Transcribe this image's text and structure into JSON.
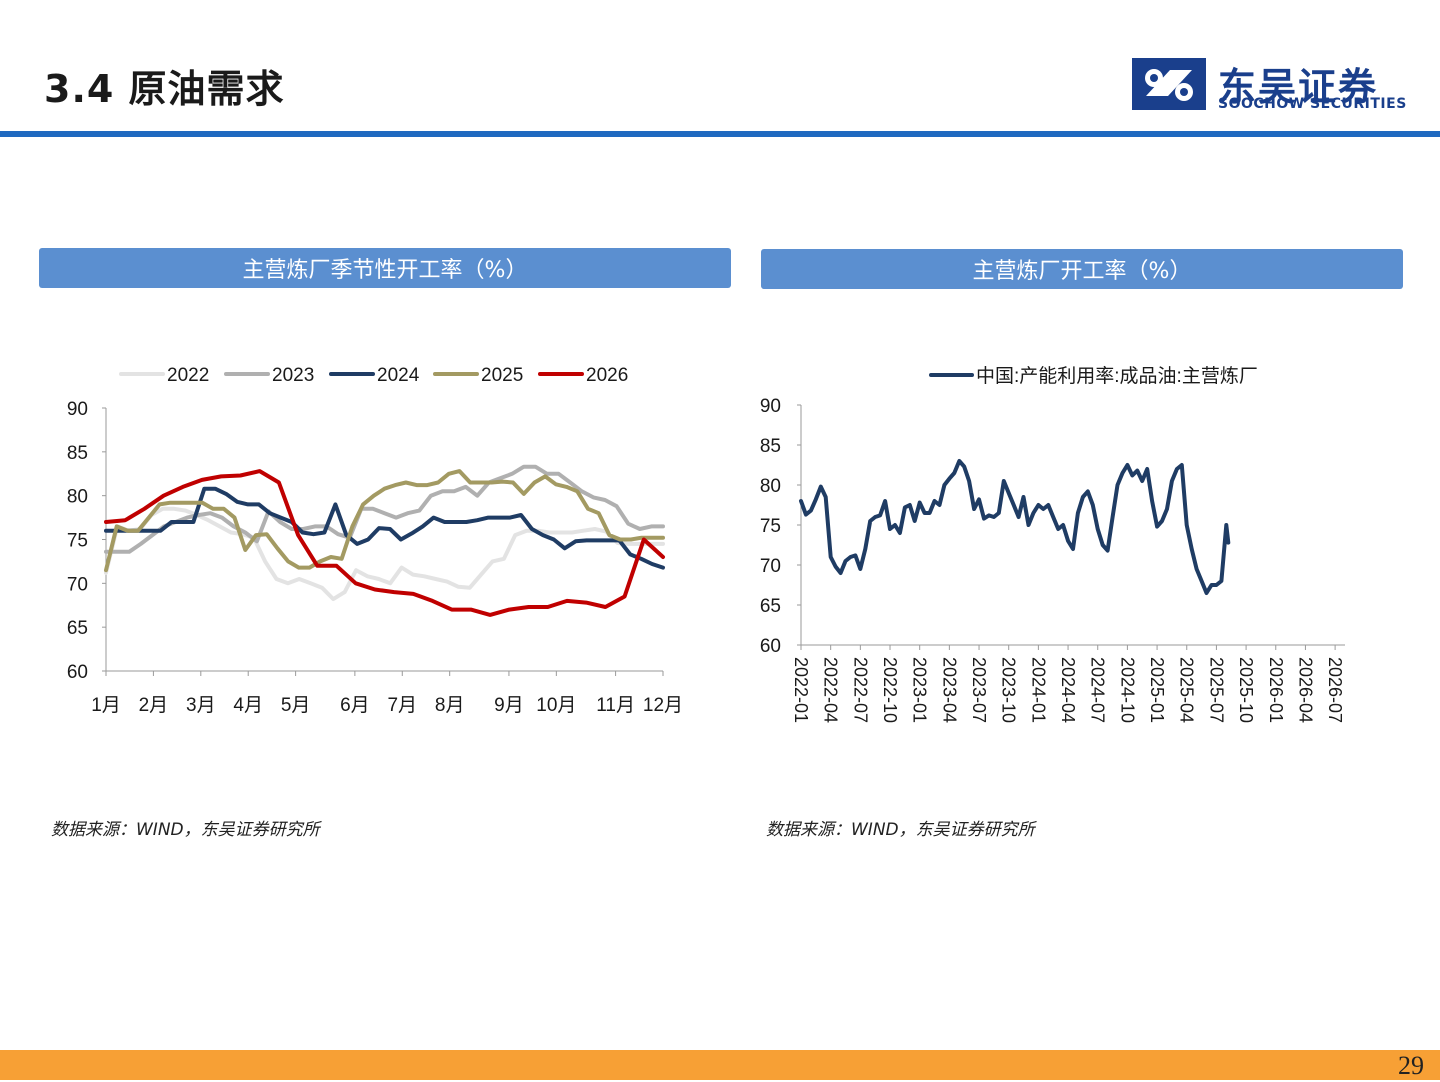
{
  "header": {
    "title": "3.4 原油需求"
  },
  "logo": {
    "name_cn": "东吴证券",
    "name_en": "SOOCHOW SECURITIES",
    "icon": "soochow-logo-icon"
  },
  "colors": {
    "accent": "#1f69c0",
    "panel": "#5b8fd0",
    "footer": "#f7a035",
    "logo": "#1a3f8c"
  },
  "left_panel": {
    "title": "主营炼厂季节性开工率（%）",
    "source": "数据来源：WIND，东吴证券研究所"
  },
  "right_panel": {
    "title": "主营炼厂开工率（%）",
    "source": "数据来源：WIND，东吴证券研究所"
  },
  "page_number": "29",
  "chart_data": [
    {
      "type": "line",
      "title": "主营炼厂季节性开工率（%）",
      "x_labels": [
        "1月",
        "2月",
        "3月",
        "4月",
        "5月",
        "6月",
        "7月",
        "8月",
        "9月",
        "10月",
        "11月",
        "12月"
      ],
      "x_tick_weeks": [
        1,
        5,
        9,
        13,
        17,
        22,
        26,
        30,
        35,
        39,
        44,
        48
      ],
      "x_range": [
        1,
        48
      ],
      "ylim": [
        60,
        90
      ],
      "yticks": [
        60,
        65,
        70,
        75,
        80,
        85,
        90
      ],
      "legend_position": "top",
      "series": [
        {
          "name": "2022",
          "color": "#e3e3e3",
          "values": [
            71.2,
            76.5,
            76.0,
            76.2,
            77.8,
            78.5,
            78.5,
            78.3,
            77.8,
            77.2,
            76.5,
            75.8,
            75.6,
            75.2,
            72.5,
            70.5,
            70.0,
            70.5,
            70.0,
            69.5,
            68.2,
            69.0,
            71.5,
            70.8,
            70.5,
            70.0,
            71.8,
            71.0,
            70.8,
            70.5,
            70.2,
            69.6,
            69.5,
            71.0,
            72.5,
            72.8,
            75.5,
            76.0,
            76.0,
            75.8,
            75.8,
            75.8,
            76.0,
            76.2,
            75.9,
            74.6,
            74.5,
            74.5,
            74.5,
            74.5
          ]
        },
        {
          "name": "2023",
          "color": "#b0b0b0",
          "values": [
            73.6,
            73.6,
            73.6,
            74.5,
            75.5,
            76.5,
            77.0,
            77.5,
            77.8,
            78.0,
            77.5,
            76.5,
            75.8,
            74.8,
            78.2,
            77.0,
            76.2,
            76.2,
            76.5,
            76.5,
            75.6,
            75.2,
            78.5,
            78.5,
            78.0,
            77.5,
            78.0,
            78.3,
            80.0,
            80.5,
            80.5,
            81.0,
            80.0,
            81.5,
            82.0,
            82.5,
            83.3,
            83.3,
            82.5,
            82.5,
            81.5,
            80.5,
            79.8,
            79.5,
            78.8,
            76.8,
            76.2,
            76.5,
            76.5
          ]
        },
        {
          "name": "2024",
          "color": "#1f3c64",
          "values": [
            76.0,
            76.0,
            76.0,
            76.0,
            76.0,
            76.0,
            77.0,
            77.0,
            77.0,
            80.8,
            80.8,
            80.2,
            79.3,
            79.0,
            79.0,
            78.0,
            77.5,
            77.0,
            75.8,
            75.6,
            75.8,
            79.0,
            75.5,
            74.5,
            75.0,
            76.3,
            76.2,
            75.0,
            75.7,
            76.5,
            77.5,
            77.0,
            77.0,
            77.0,
            77.2,
            77.5,
            77.5,
            77.5,
            77.8,
            76.2,
            75.5,
            75.0,
            74.0,
            74.8,
            74.9,
            74.9,
            74.9,
            74.9,
            73.3,
            72.8,
            72.2,
            71.8
          ]
        },
        {
          "name": "2025",
          "color": "#a39a62",
          "values": [
            71.5,
            76.5,
            76.0,
            76.0,
            77.5,
            79.0,
            79.2,
            79.2,
            79.2,
            79.2,
            78.5,
            78.5,
            77.5,
            73.8,
            75.5,
            75.6,
            74.0,
            72.5,
            71.8,
            71.8,
            72.5,
            73.0,
            72.8,
            76.5,
            79.0,
            80.0,
            80.8,
            81.2,
            81.5,
            81.2,
            81.2,
            81.5,
            82.5,
            82.8,
            81.5,
            81.5,
            81.5,
            81.6,
            81.5,
            80.2,
            81.5,
            82.2,
            81.3,
            81.0,
            80.5,
            78.5,
            78.0,
            75.5,
            75.0,
            75.0,
            75.2,
            75.2,
            75.2
          ]
        },
        {
          "name": "2026",
          "color": "#c00000",
          "values": [
            77.0,
            77.2,
            78.5,
            80.0,
            81.0,
            81.8,
            82.2,
            82.3,
            82.8,
            81.5,
            75.5,
            72.0,
            72.0,
            70.0,
            69.3,
            69.0,
            68.8,
            68.0,
            67.0,
            67.0,
            66.4,
            67.0,
            67.3,
            67.3,
            68.0,
            67.8,
            67.3,
            68.5,
            75.0,
            73.0
          ]
        }
      ]
    },
    {
      "type": "line",
      "title": "主营炼厂开工率（%）",
      "x_labels": [
        "2022-01",
        "2022-04",
        "2022-07",
        "2022-10",
        "2023-01",
        "2023-04",
        "2023-07",
        "2023-10",
        "2024-01",
        "2024-04",
        "2024-07",
        "2024-10",
        "2025-01",
        "2025-04",
        "2025-07",
        "2025-10",
        "2026-01",
        "2026-04",
        "2026-07"
      ],
      "x_range": [
        0,
        55
      ],
      "ylim": [
        60,
        90
      ],
      "yticks": [
        60,
        65,
        70,
        75,
        80,
        85,
        90
      ],
      "legend_position": "top",
      "series": [
        {
          "name": "中国:产能利用率:成品油:主营炼厂",
          "color": "#1f3c64",
          "points": [
            [
              0,
              78.0
            ],
            [
              0.5,
              76.3
            ],
            [
              1,
              76.8
            ],
            [
              1.5,
              78.2
            ],
            [
              2,
              79.8
            ],
            [
              2.5,
              78.5
            ],
            [
              3,
              71.0
            ],
            [
              3.5,
              69.8
            ],
            [
              4,
              69.0
            ],
            [
              4.5,
              70.5
            ],
            [
              5,
              71.0
            ],
            [
              5.5,
              71.2
            ],
            [
              6,
              69.5
            ],
            [
              6.5,
              72.0
            ],
            [
              7,
              75.5
            ],
            [
              7.5,
              76.0
            ],
            [
              8,
              76.2
            ],
            [
              8.5,
              78.0
            ],
            [
              9,
              74.5
            ],
            [
              9.5,
              75.0
            ],
            [
              10,
              74.0
            ],
            [
              10.5,
              77.2
            ],
            [
              11,
              77.5
            ],
            [
              11.5,
              75.5
            ],
            [
              12,
              77.8
            ],
            [
              12.5,
              76.5
            ],
            [
              13,
              76.5
            ],
            [
              13.5,
              78.0
            ],
            [
              14,
              77.5
            ],
            [
              14.5,
              80.0
            ],
            [
              15,
              80.8
            ],
            [
              15.5,
              81.5
            ],
            [
              16,
              83.0
            ],
            [
              16.5,
              82.3
            ],
            [
              17,
              80.5
            ],
            [
              17.5,
              77.0
            ],
            [
              18,
              78.2
            ],
            [
              18.5,
              75.8
            ],
            [
              19,
              76.2
            ],
            [
              19.5,
              76.0
            ],
            [
              20,
              76.5
            ],
            [
              20.5,
              80.5
            ],
            [
              21,
              79.0
            ],
            [
              21.5,
              77.5
            ],
            [
              22,
              76.0
            ],
            [
              22.5,
              78.5
            ],
            [
              23,
              75.0
            ],
            [
              23.5,
              76.5
            ],
            [
              24,
              77.5
            ],
            [
              24.5,
              77.0
            ],
            [
              25,
              77.5
            ],
            [
              25.5,
              76.0
            ],
            [
              26,
              74.5
            ],
            [
              26.5,
              75.0
            ],
            [
              27,
              73.0
            ],
            [
              27.5,
              72.0
            ],
            [
              28,
              76.5
            ],
            [
              28.5,
              78.5
            ],
            [
              29,
              79.2
            ],
            [
              29.5,
              77.5
            ],
            [
              30,
              74.5
            ],
            [
              30.5,
              72.5
            ],
            [
              31,
              71.8
            ],
            [
              31.5,
              76.0
            ],
            [
              32,
              80.0
            ],
            [
              32.5,
              81.5
            ],
            [
              33,
              82.5
            ],
            [
              33.5,
              81.2
            ],
            [
              34,
              81.8
            ],
            [
              34.5,
              80.5
            ],
            [
              35,
              82.0
            ],
            [
              35.5,
              78.0
            ],
            [
              36,
              74.8
            ],
            [
              36.5,
              75.5
            ],
            [
              37,
              77.0
            ],
            [
              37.5,
              80.5
            ],
            [
              38,
              82.0
            ],
            [
              38.5,
              82.5
            ],
            [
              39,
              75.0
            ],
            [
              39.5,
              72.0
            ],
            [
              40,
              69.5
            ],
            [
              40.5,
              68.0
            ],
            [
              41,
              66.5
            ],
            [
              41.5,
              67.5
            ],
            [
              42,
              67.5
            ],
            [
              42.5,
              68.0
            ],
            [
              43,
              75.0
            ],
            [
              43.2,
              72.8
            ]
          ]
        }
      ]
    }
  ]
}
